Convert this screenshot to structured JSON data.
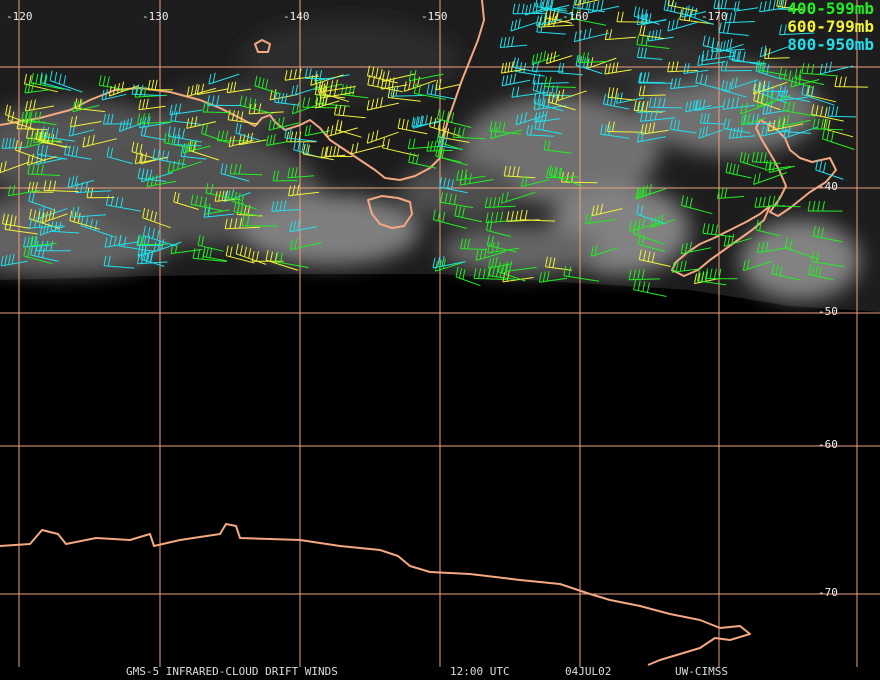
{
  "longitude_labels": [
    "-120",
    "-130",
    "-140",
    "-150",
    "-160",
    "-170"
  ],
  "latitude_labels": [
    "-40",
    "-50",
    "-60",
    "-70"
  ],
  "legend": [
    {
      "label": "400-599mb",
      "color": "#22ee22"
    },
    {
      "label": "600-799mb",
      "color": "#f2f23a"
    },
    {
      "label": "800-950mb",
      "color": "#22e0ee"
    }
  ],
  "footer": {
    "product": "GMS-5 INFRARED-CLOUD DRIFT WINDS",
    "time": "12:00 UTC",
    "date": "04JUL02",
    "source": "UW-CIMSS"
  },
  "colors": {
    "grid": "#f0a080",
    "coastline": "#f4a882",
    "background": "#000000"
  }
}
